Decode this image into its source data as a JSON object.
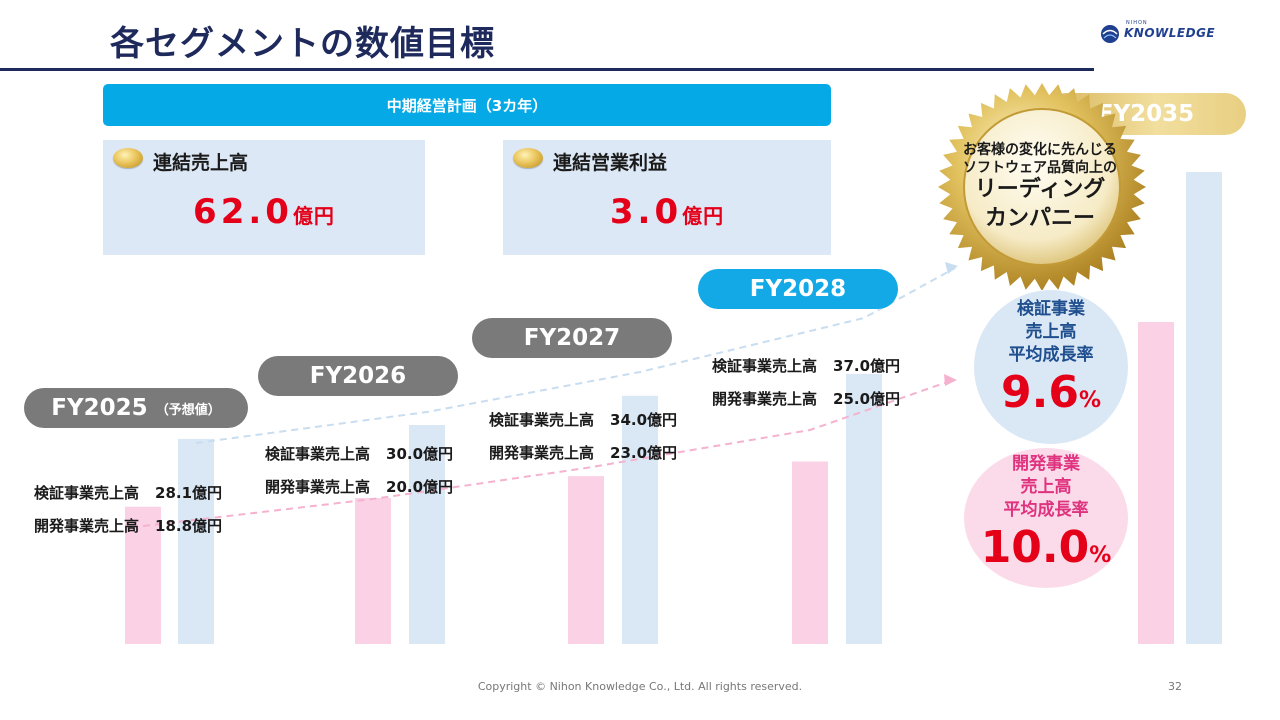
{
  "title": "各セグメントの数値目標",
  "logo": {
    "small": "NIHON",
    "main": "KNOWLEDGE"
  },
  "plan_banner": "中期経営計画（3カ年）",
  "kpis": [
    {
      "label": "連結売上高",
      "value": "62.0",
      "unit": "億円"
    },
    {
      "label": "連結営業利益",
      "value": "3.0",
      "unit": "億円"
    }
  ],
  "badge": {
    "small_line1": "お客様の変化に先んじる",
    "small_line2": "ソフトウェア品質向上の",
    "large_line1": "リーディング",
    "large_line2": "カンパニー"
  },
  "cagr": [
    {
      "line1": "検証事業",
      "line2": "売上高",
      "line3": "平均成長率",
      "value": "9.6",
      "unit": "%"
    },
    {
      "line1": "開発事業",
      "line2": "売上高",
      "line3": "平均成長率",
      "value": "10.0",
      "unit": "%"
    }
  ],
  "chart_data": {
    "type": "bar",
    "categories": [
      "FY2025",
      "FY2026",
      "FY2027",
      "FY2028",
      "FY2035"
    ],
    "category_suffix": [
      "（予想値）",
      "",
      "",
      "",
      ""
    ],
    "series": [
      {
        "name": "開発事業売上高",
        "values": [
          18.8,
          20.0,
          23.0,
          25.0,
          null
        ],
        "color": "#fbd1e5"
      },
      {
        "name": "検証事業売上高",
        "values": [
          28.1,
          30.0,
          34.0,
          37.0,
          null
        ],
        "color": "#dae7f5"
      }
    ],
    "value_label_unit": "億円",
    "highlight_category": "FY2028",
    "trend_colors": {
      "verification": "#c9ddf0",
      "development": "#f5b2cf"
    }
  },
  "footer": "Copyright © Nihon Knowledge Co., Ltd. All rights reserved.",
  "page_number": "32",
  "colors": {
    "title": "#1f2a5c",
    "accent": "#05a9e6",
    "value_red": "#e5001a",
    "pill_gray": "#7a7a7a"
  }
}
